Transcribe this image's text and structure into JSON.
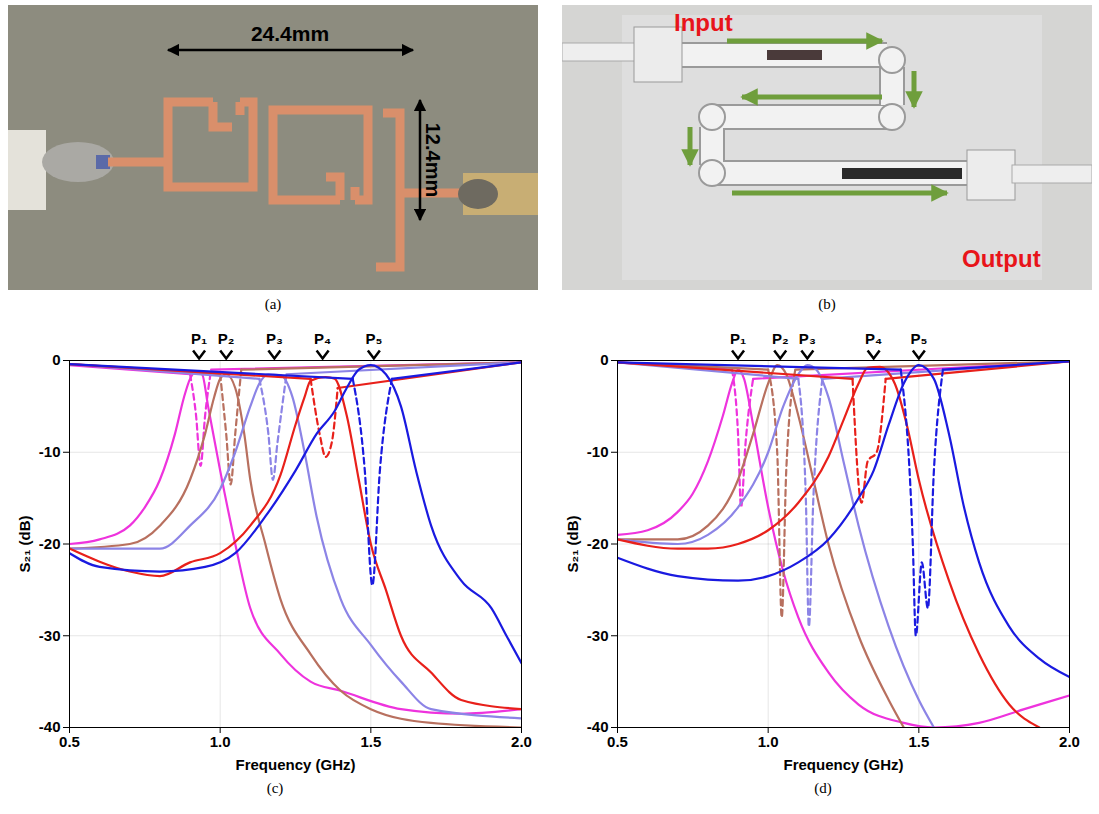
{
  "panels": [
    {
      "caption": "(a)",
      "labels": [
        "24.4mm",
        "12.4mm"
      ]
    },
    {
      "caption": "(b)",
      "labels": [
        "Input",
        "Output"
      ]
    }
  ],
  "chart_data": [
    {
      "type": "line",
      "caption": "(c)",
      "x_label": "Frequency (GHz)",
      "y_label": "S₂₁ (dB)",
      "xlim": [
        0.5,
        2.0
      ],
      "xticks": [
        0.5,
        {
          "value": 1,
          "label": "1.0"
        },
        1.5,
        {
          "value": 2,
          "label": "2.0"
        }
      ],
      "ylim": [
        -40,
        0
      ],
      "yticks": [
        -40,
        -30,
        -20,
        -10,
        0
      ],
      "grid": true,
      "annotations": [
        {
          "text": "P₁",
          "x": 0.93,
          "y": 0
        },
        {
          "text": "P₂",
          "x": 1.02,
          "y": 0
        },
        {
          "text": "P₃",
          "x": 1.18,
          "y": 0
        },
        {
          "text": "P₄",
          "x": 1.34,
          "y": 0
        },
        {
          "text": "P₅",
          "x": 1.51,
          "y": 0
        }
      ],
      "series": [
        {
          "color": "#ee33dd",
          "line_style": "solid",
          "x": [
            0.5,
            0.6,
            0.7,
            0.75,
            0.8,
            0.85,
            0.88,
            0.9,
            0.92,
            0.94,
            0.96,
            1.0,
            1.05,
            1.1,
            1.2,
            1.3,
            1.4,
            1.6,
            1.8,
            2.0
          ],
          "values": [
            -20,
            -19.5,
            -18,
            -16,
            -13,
            -8,
            -4,
            -2,
            -1.2,
            -1.5,
            -5,
            -12,
            -20,
            -27,
            -32,
            -35,
            -36,
            -38,
            -38.5,
            -38
          ]
        },
        {
          "color": "#ee33dd",
          "line_style": "solid",
          "x": [
            0.5,
            0.9,
            0.935,
            0.97,
            2.0
          ],
          "values": [
            -0.5,
            -1.5,
            null,
            -1,
            -0.2
          ]
        },
        {
          "color": "#ee33dd",
          "line_style": "dashed",
          "x": [
            0.9,
            0.92,
            0.935,
            0.95,
            0.97
          ],
          "values": [
            -1.5,
            -6,
            -11.5,
            -6,
            -1
          ]
        },
        {
          "color": "#b8705f",
          "line_style": "solid",
          "x": [
            0.5,
            0.7,
            0.8,
            0.9,
            0.95,
            0.98,
            1.0,
            1.02,
            1.05,
            1.08,
            1.1,
            1.15,
            1.2,
            1.3,
            1.4,
            1.5,
            1.7,
            2.0
          ],
          "values": [
            -20.5,
            -20,
            -18,
            -13,
            -8,
            -4,
            -2,
            -1.5,
            -3,
            -8,
            -13,
            -20,
            -26,
            -32,
            -36,
            -38,
            -39.5,
            -40
          ]
        },
        {
          "color": "#b8705f",
          "line_style": "solid",
          "x": [
            0.5,
            1.0,
            1.035,
            1.07,
            2.0
          ],
          "values": [
            -0.4,
            -1.5,
            null,
            -1,
            -0.2
          ]
        },
        {
          "color": "#b8705f",
          "line_style": "dashed",
          "x": [
            1.0,
            1.02,
            1.035,
            1.05,
            1.07
          ],
          "values": [
            -1.5,
            -8,
            -13.5,
            -8,
            -1
          ]
        },
        {
          "color": "#8c84e6",
          "line_style": "solid",
          "x": [
            0.5,
            0.8,
            0.9,
            1.0,
            1.05,
            1.1,
            1.13,
            1.16,
            1.2,
            1.24,
            1.28,
            1.32,
            1.4,
            1.5,
            1.6,
            1.7,
            2.0
          ],
          "values": [
            -20.5,
            -20.5,
            -18,
            -14,
            -10,
            -5,
            -2.5,
            -1.5,
            -1.6,
            -4,
            -10,
            -17,
            -26,
            -31,
            -35,
            -38,
            -39
          ]
        },
        {
          "color": "#8c84e6",
          "line_style": "solid",
          "x": [
            0.5,
            1.13,
            1.175,
            1.22,
            2.0
          ],
          "values": [
            -0.4,
            -2,
            null,
            -1.5,
            -0.2
          ]
        },
        {
          "color": "#8c84e6",
          "line_style": "dashed",
          "x": [
            1.13,
            1.16,
            1.175,
            1.19,
            1.22
          ],
          "values": [
            -2,
            -8,
            -13,
            -9,
            -1.5
          ]
        },
        {
          "color": "#e8201a",
          "line_style": "solid",
          "x": [
            0.5,
            0.7,
            0.8,
            0.9,
            1.0,
            1.1,
            1.2,
            1.25,
            1.28,
            1.3,
            1.35,
            1.38,
            1.42,
            1.46,
            1.5,
            1.55,
            1.6,
            1.7,
            1.8,
            2.0
          ],
          "values": [
            -20.5,
            -23,
            -23.5,
            -22,
            -21,
            -18,
            -12.5,
            -7,
            -4,
            -2.2,
            -1.8,
            -2,
            -6,
            -13,
            -20,
            -25,
            -30,
            -34,
            -37,
            -38
          ]
        },
        {
          "color": "#e8201a",
          "line_style": "solid",
          "x": [
            0.5,
            1.3,
            1.35,
            1.39,
            2.0
          ],
          "values": [
            -0.4,
            -2,
            null,
            -3,
            -0.2
          ]
        },
        {
          "color": "#e8201a",
          "line_style": "dashed",
          "x": [
            1.3,
            1.33,
            1.35,
            1.37,
            1.39
          ],
          "values": [
            -2,
            -8,
            -10.5,
            -9,
            -3
          ]
        },
        {
          "color": "#1a1ae0",
          "line_style": "solid",
          "x": [
            0.5,
            0.6,
            0.8,
            0.95,
            1.05,
            1.15,
            1.25,
            1.32,
            1.38,
            1.42,
            1.46,
            1.5,
            1.55,
            1.6,
            1.65,
            1.7,
            1.8,
            1.9,
            1.95,
            2.0
          ],
          "values": [
            -21,
            -22.5,
            -23,
            -22.5,
            -21,
            -17,
            -12,
            -8,
            -5.5,
            -3,
            -1,
            -0.5,
            -1.5,
            -5,
            -12,
            -18,
            -24,
            -27,
            -30,
            -33
          ]
        },
        {
          "color": "#1a1ae0",
          "line_style": "solid",
          "x": [
            0.5,
            1.44,
            1.505,
            1.57,
            2.0
          ],
          "values": [
            -0.4,
            -2,
            null,
            -2,
            -0.2
          ]
        },
        {
          "color": "#1a1ae0",
          "line_style": "dashed",
          "x": [
            1.44,
            1.48,
            1.505,
            1.53,
            1.57
          ],
          "values": [
            -2,
            -12,
            -24.5,
            -12,
            -2
          ]
        }
      ]
    },
    {
      "type": "line",
      "caption": "(d)",
      "x_label": "Frequency (GHz)",
      "y_label": "S₂₁ (dB)",
      "xlim": [
        0.5,
        2.0
      ],
      "xticks": [
        0.5,
        {
          "value": 1,
          "label": "1.0"
        },
        1.5,
        {
          "value": 2,
          "label": "2.0"
        }
      ],
      "ylim": [
        -40,
        0
      ],
      "yticks": [
        -40,
        -30,
        -20,
        -10,
        0
      ],
      "grid": true,
      "annotations": [
        {
          "text": "P₁",
          "x": 0.9,
          "y": 0
        },
        {
          "text": "P₂",
          "x": 1.04,
          "y": 0
        },
        {
          "text": "P₃",
          "x": 1.13,
          "y": 0
        },
        {
          "text": "P₄",
          "x": 1.35,
          "y": 0
        },
        {
          "text": "P₅",
          "x": 1.5,
          "y": 0
        }
      ],
      "series": [
        {
          "color": "#ee33dd",
          "line_style": "solid",
          "x": [
            0.5,
            0.6,
            0.7,
            0.75,
            0.8,
            0.85,
            0.88,
            0.9,
            0.92,
            0.95,
            1.0,
            1.05,
            1.1,
            1.2,
            1.3,
            1.45,
            1.55,
            1.7,
            1.85,
            2.0
          ],
          "values": [
            -19,
            -18.5,
            -16.5,
            -14.5,
            -11,
            -6,
            -2.5,
            -1,
            -2,
            -7,
            -16,
            -23,
            -28,
            -34,
            -37.5,
            -39.5,
            -40,
            -39.5,
            -38,
            -36.5
          ]
        },
        {
          "color": "#ee33dd",
          "line_style": "solid",
          "x": [
            0.5,
            0.88,
            0.91,
            0.95,
            2.0
          ],
          "values": [
            -0.2,
            -1,
            null,
            -2,
            -0.1
          ]
        },
        {
          "color": "#ee33dd",
          "line_style": "dashed",
          "x": [
            0.88,
            0.9,
            0.91,
            0.925,
            0.95
          ],
          "values": [
            -1,
            -8,
            -16,
            -9,
            -2
          ]
        },
        {
          "color": "#b8705f",
          "line_style": "solid",
          "x": [
            0.5,
            0.7,
            0.8,
            0.9,
            0.95,
            1.0,
            1.03,
            1.06,
            1.1,
            1.15,
            1.2,
            1.3,
            1.4,
            1.45
          ],
          "values": [
            -19.5,
            -19.5,
            -18,
            -13,
            -8,
            -2.5,
            -0.5,
            -1.5,
            -6,
            -13,
            -20,
            -30,
            -37,
            -40
          ]
        },
        {
          "color": "#b8705f",
          "line_style": "solid",
          "x": [
            0.5,
            1.0,
            1.045,
            1.09,
            2.0
          ],
          "values": [
            -0.2,
            -1,
            null,
            -1,
            -0.1
          ]
        },
        {
          "color": "#b8705f",
          "line_style": "dashed",
          "x": [
            1.0,
            1.03,
            1.045,
            1.06,
            1.09
          ],
          "values": [
            -1,
            -10,
            -28,
            -12,
            -1
          ]
        },
        {
          "color": "#8c84e6",
          "line_style": "solid",
          "x": [
            0.5,
            0.7,
            0.8,
            0.9,
            1.0,
            1.05,
            1.1,
            1.13,
            1.16,
            1.2,
            1.25,
            1.3,
            1.4,
            1.5,
            1.55
          ],
          "values": [
            -19.5,
            -20,
            -19,
            -16,
            -10,
            -5,
            -1.5,
            -0.5,
            -1,
            -4,
            -11,
            -18,
            -29,
            -37,
            -40
          ]
        },
        {
          "color": "#8c84e6",
          "line_style": "solid",
          "x": [
            0.5,
            1.1,
            1.135,
            1.18,
            2.0
          ],
          "values": [
            -0.2,
            -2,
            null,
            -2,
            -0.1
          ]
        },
        {
          "color": "#8c84e6",
          "line_style": "dashed",
          "x": [
            1.1,
            1.125,
            1.135,
            1.15,
            1.18
          ],
          "values": [
            -2,
            -15,
            -29,
            -15,
            -2
          ]
        },
        {
          "color": "#e8201a",
          "line_style": "solid",
          "x": [
            0.5,
            0.7,
            0.8,
            0.9,
            1.0,
            1.1,
            1.2,
            1.25,
            1.3,
            1.33,
            1.37,
            1.42,
            1.46,
            1.5,
            1.6,
            1.7,
            1.8,
            1.9
          ],
          "values": [
            -19.5,
            -20.5,
            -20.5,
            -20,
            -18.5,
            -15.5,
            -10.5,
            -6.5,
            -2.5,
            -0.8,
            -0.7,
            -2.5,
            -7,
            -13,
            -24,
            -32,
            -37.5,
            -40
          ]
        },
        {
          "color": "#e8201a",
          "line_style": "solid",
          "x": [
            0.5,
            1.28,
            1.33,
            1.39,
            2.0
          ],
          "values": [
            -0.2,
            -2,
            null,
            -2,
            -0.1
          ]
        },
        {
          "color": "#e8201a",
          "line_style": "dashed",
          "x": [
            1.28,
            1.31,
            1.33,
            1.36,
            1.39
          ],
          "values": [
            -2,
            -15.5,
            -11,
            -10,
            -2
          ]
        },
        {
          "color": "#1a1ae0",
          "line_style": "solid",
          "x": [
            0.5,
            0.7,
            0.9,
            1.0,
            1.1,
            1.2,
            1.3,
            1.35,
            1.4,
            1.45,
            1.5,
            1.55,
            1.6,
            1.65,
            1.7,
            1.8,
            1.9,
            2.0
          ],
          "values": [
            -21.5,
            -23.5,
            -24,
            -23.5,
            -22,
            -19.5,
            -15,
            -12,
            -7,
            -2.5,
            -0.5,
            -2,
            -8,
            -16,
            -22,
            -29,
            -32.5,
            -34.5
          ]
        },
        {
          "color": "#1a1ae0",
          "line_style": "solid",
          "x": [
            0.5,
            1.44,
            1.51,
            1.58,
            2.0
          ],
          "values": [
            -0.2,
            -1,
            null,
            -1,
            -0.1
          ]
        },
        {
          "color": "#1a1ae0",
          "line_style": "dashed",
          "x": [
            1.44,
            1.48,
            1.49,
            1.51,
            1.53,
            1.55,
            1.58
          ],
          "values": [
            -1,
            -20,
            -30,
            -22,
            -27,
            -12,
            -1
          ]
        }
      ]
    }
  ]
}
